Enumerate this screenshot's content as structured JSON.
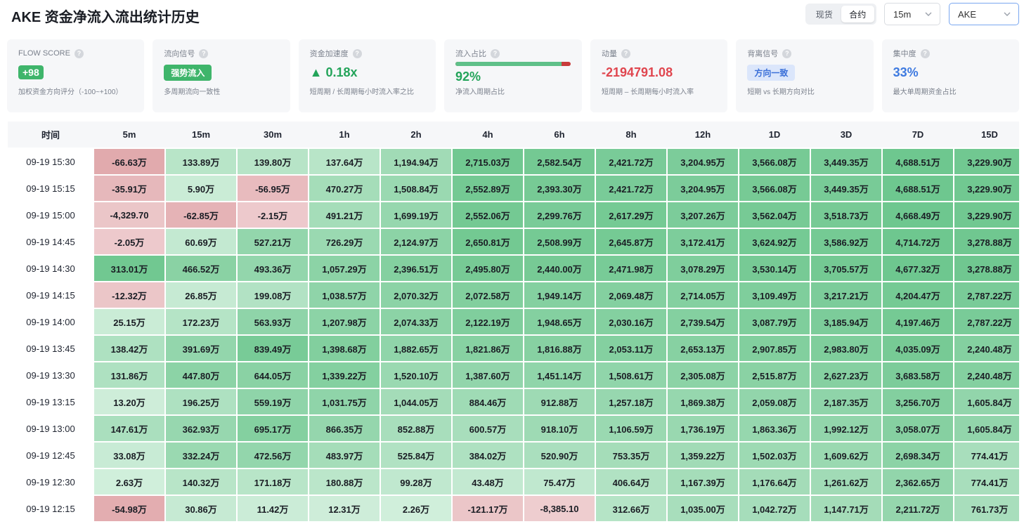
{
  "header": {
    "title": "AKE 资金净流入流出统计历史",
    "market_tabs": [
      "现货",
      "合约"
    ],
    "active_market": "合约",
    "interval_select": "15m",
    "symbol_select": "AKE"
  },
  "cards": {
    "flow_score": {
      "label": "FLOW SCORE",
      "value": "+98",
      "sub": "加权资金方向评分（-100~+100）"
    },
    "flow_signal": {
      "label": "流向信号",
      "value": "强势流入",
      "sub": "多周期流向一致性"
    },
    "acceleration": {
      "label": "资金加速度",
      "value": "▲ 0.18x",
      "sub": "短周期 / 长周期每小时流入率之比"
    },
    "inflow_ratio": {
      "label": "流入占比",
      "value": "92%",
      "fraction": 0.92,
      "sub": "净流入周期占比"
    },
    "momentum": {
      "label": "动量",
      "value": "-2194791.08",
      "sub": "短周期 – 长周期每小时流入率"
    },
    "divergence": {
      "label": "背离信号",
      "value": "方向一致",
      "sub": "短期 vs 长期方向对比"
    },
    "concentration": {
      "label": "集中度",
      "value": "33%",
      "sub": "最大单周期资金占比"
    }
  },
  "colors": {
    "positive": "#3fb56b",
    "negative": "#e0464f",
    "blue": "#3e7ae0"
  },
  "table": {
    "columns": [
      "时间",
      "5m",
      "15m",
      "30m",
      "1h",
      "2h",
      "4h",
      "6h",
      "8h",
      "12h",
      "1D",
      "3D",
      "7D",
      "15D"
    ],
    "rows": [
      {
        "time": "09-19 15:30",
        "cells": [
          "-66.63万",
          "133.89万",
          "139.80万",
          "137.64万",
          "1,194.94万",
          "2,715.03万",
          "2,582.54万",
          "2,421.72万",
          "3,204.95万",
          "3,566.08万",
          "3,449.35万",
          "4,688.51万",
          "3,229.90万"
        ],
        "levels": [
          -0.75,
          0.28,
          0.29,
          0.28,
          0.45,
          0.8,
          0.78,
          0.74,
          0.72,
          0.76,
          0.75,
          0.82,
          0.8
        ]
      },
      {
        "time": "09-19 15:15",
        "cells": [
          "-35.91万",
          "5.90万",
          "-56.95万",
          "470.27万",
          "1,508.84万",
          "2,552.89万",
          "2,393.30万",
          "2,421.72万",
          "3,204.95万",
          "3,566.08万",
          "3,449.35万",
          "4,688.51万",
          "3,229.90万"
        ],
        "levels": [
          -0.55,
          0.15,
          -0.5,
          0.42,
          0.5,
          0.78,
          0.76,
          0.74,
          0.72,
          0.76,
          0.75,
          0.82,
          0.8
        ]
      },
      {
        "time": "09-19 15:00",
        "cells": [
          "-4,329.70",
          "-62.85万",
          "-2.15万",
          "491.21万",
          "1,699.19万",
          "2,552.06万",
          "2,299.76万",
          "2,617.29万",
          "3,207.26万",
          "3,562.04万",
          "3,518.73万",
          "4,668.49万",
          "3,229.90万"
        ],
        "levels": [
          -0.35,
          -0.62,
          -0.3,
          0.42,
          0.53,
          0.78,
          0.74,
          0.77,
          0.72,
          0.76,
          0.76,
          0.82,
          0.8
        ]
      },
      {
        "time": "09-19 14:45",
        "cells": [
          "-2.05万",
          "60.69万",
          "527.21万",
          "726.29万",
          "2,124.97万",
          "2,650.81万",
          "2,508.99万",
          "2,645.87万",
          "3,172.41万",
          "3,624.92万",
          "3,586.92万",
          "4,714.72万",
          "3,278.88万"
        ],
        "levels": [
          -0.3,
          0.2,
          0.55,
          0.5,
          0.6,
          0.79,
          0.77,
          0.77,
          0.71,
          0.77,
          0.77,
          0.82,
          0.81
        ]
      },
      {
        "time": "09-19 14:30",
        "cells": [
          "313.01万",
          "466.52万",
          "493.36万",
          "1,057.29万",
          "2,396.51万",
          "2,495.80万",
          "2,440.00万",
          "2,471.98万",
          "3,078.29万",
          "3,530.14万",
          "3,705.57万",
          "4,677.32万",
          "3,278.88万"
        ],
        "levels": [
          0.8,
          0.62,
          0.55,
          0.6,
          0.66,
          0.76,
          0.76,
          0.75,
          0.7,
          0.76,
          0.78,
          0.82,
          0.81
        ]
      },
      {
        "time": "09-19 14:15",
        "cells": [
          "-12.32万",
          "26.85万",
          "199.08万",
          "1,038.57万",
          "2,070.32万",
          "2,072.58万",
          "1,949.14万",
          "2,069.48万",
          "2,714.05万",
          "3,109.49万",
          "3,217.21万",
          "4,204.47万",
          "2,787.22万"
        ],
        "levels": [
          -0.35,
          0.18,
          0.32,
          0.58,
          0.6,
          0.68,
          0.66,
          0.66,
          0.66,
          0.7,
          0.72,
          0.77,
          0.74
        ]
      },
      {
        "time": "09-19 14:00",
        "cells": [
          "25.15万",
          "172.23万",
          "563.93万",
          "1,207.98万",
          "2,074.33万",
          "2,122.19万",
          "1,948.65万",
          "2,030.16万",
          "2,739.54万",
          "3,087.79万",
          "3,185.94万",
          "4,197.46万",
          "2,787.22万"
        ],
        "levels": [
          0.15,
          0.3,
          0.58,
          0.6,
          0.6,
          0.69,
          0.66,
          0.66,
          0.66,
          0.7,
          0.72,
          0.77,
          0.74
        ]
      },
      {
        "time": "09-19 13:45",
        "cells": [
          "138.42万",
          "391.69万",
          "839.49万",
          "1,398.68万",
          "1,882.65万",
          "1,821.86万",
          "1,816.88万",
          "2,053.11万",
          "2,653.13万",
          "2,907.85万",
          "2,983.80万",
          "4,035.09万",
          "2,240.48万"
        ],
        "levels": [
          0.35,
          0.55,
          0.75,
          0.68,
          0.57,
          0.64,
          0.64,
          0.66,
          0.64,
          0.68,
          0.7,
          0.76,
          0.66
        ]
      },
      {
        "time": "09-19 13:30",
        "cells": [
          "131.86万",
          "447.80万",
          "644.05万",
          "1,339.22万",
          "1,520.10万",
          "1,387.60万",
          "1,451.14万",
          "1,508.61万",
          "2,305.08万",
          "2,515.87万",
          "2,627.23万",
          "3,683.58万",
          "2,240.48万"
        ],
        "levels": [
          0.35,
          0.6,
          0.62,
          0.66,
          0.5,
          0.56,
          0.57,
          0.57,
          0.6,
          0.62,
          0.65,
          0.72,
          0.66
        ]
      },
      {
        "time": "09-19 13:15",
        "cells": [
          "13.20万",
          "196.25万",
          "559.19万",
          "1,031.75万",
          "1,044.05万",
          "884.46万",
          "912.88万",
          "1,257.18万",
          "1,869.38万",
          "2,059.08万",
          "2,187.35万",
          "3,256.70万",
          "1,605.84万"
        ],
        "levels": [
          0.12,
          0.35,
          0.58,
          0.58,
          0.43,
          0.46,
          0.47,
          0.52,
          0.53,
          0.56,
          0.58,
          0.67,
          0.56
        ]
      },
      {
        "time": "09-19 13:00",
        "cells": [
          "147.61万",
          "362.93万",
          "695.17万",
          "866.35万",
          "852.88万",
          "600.57万",
          "918.10万",
          "1,106.59万",
          "1,736.19万",
          "1,863.36万",
          "1,992.12万",
          "3,058.07万",
          "1,605.84万"
        ],
        "levels": [
          0.38,
          0.52,
          0.66,
          0.54,
          0.4,
          0.4,
          0.47,
          0.5,
          0.51,
          0.53,
          0.56,
          0.65,
          0.56
        ]
      },
      {
        "time": "09-19 12:45",
        "cells": [
          "33.08万",
          "332.24万",
          "472.56万",
          "483.97万",
          "525.84万",
          "384.02万",
          "520.90万",
          "753.35万",
          "1,359.22万",
          "1,502.03万",
          "1,609.62万",
          "2,698.34万",
          "774.41万"
        ],
        "levels": [
          0.16,
          0.5,
          0.55,
          0.42,
          0.33,
          0.35,
          0.38,
          0.42,
          0.45,
          0.48,
          0.5,
          0.6,
          0.4
        ]
      },
      {
        "time": "09-19 12:30",
        "cells": [
          "2.63万",
          "140.32万",
          "171.18万",
          "180.88万",
          "99.28万",
          "43.48万",
          "75.47万",
          "406.64万",
          "1,167.39万",
          "1,176.64万",
          "1,261.62万",
          "2,362.65万",
          "774.41万"
        ],
        "levels": [
          0.1,
          0.28,
          0.28,
          0.26,
          0.22,
          0.2,
          0.22,
          0.33,
          0.42,
          0.43,
          0.45,
          0.56,
          0.4
        ]
      },
      {
        "time": "09-19 12:15",
        "cells": [
          "-54.98万",
          "30.86万",
          "11.42万",
          "12.31万",
          "2.26万",
          "-121.17万",
          "-8,385.10",
          "312.66万",
          "1,035.00万",
          "1,042.72万",
          "1,147.71万",
          "2,211.72万",
          "761.73万"
        ],
        "levels": [
          -0.7,
          0.18,
          0.14,
          0.12,
          0.1,
          -0.35,
          -0.25,
          0.3,
          0.4,
          0.41,
          0.43,
          0.54,
          0.4
        ]
      }
    ]
  }
}
